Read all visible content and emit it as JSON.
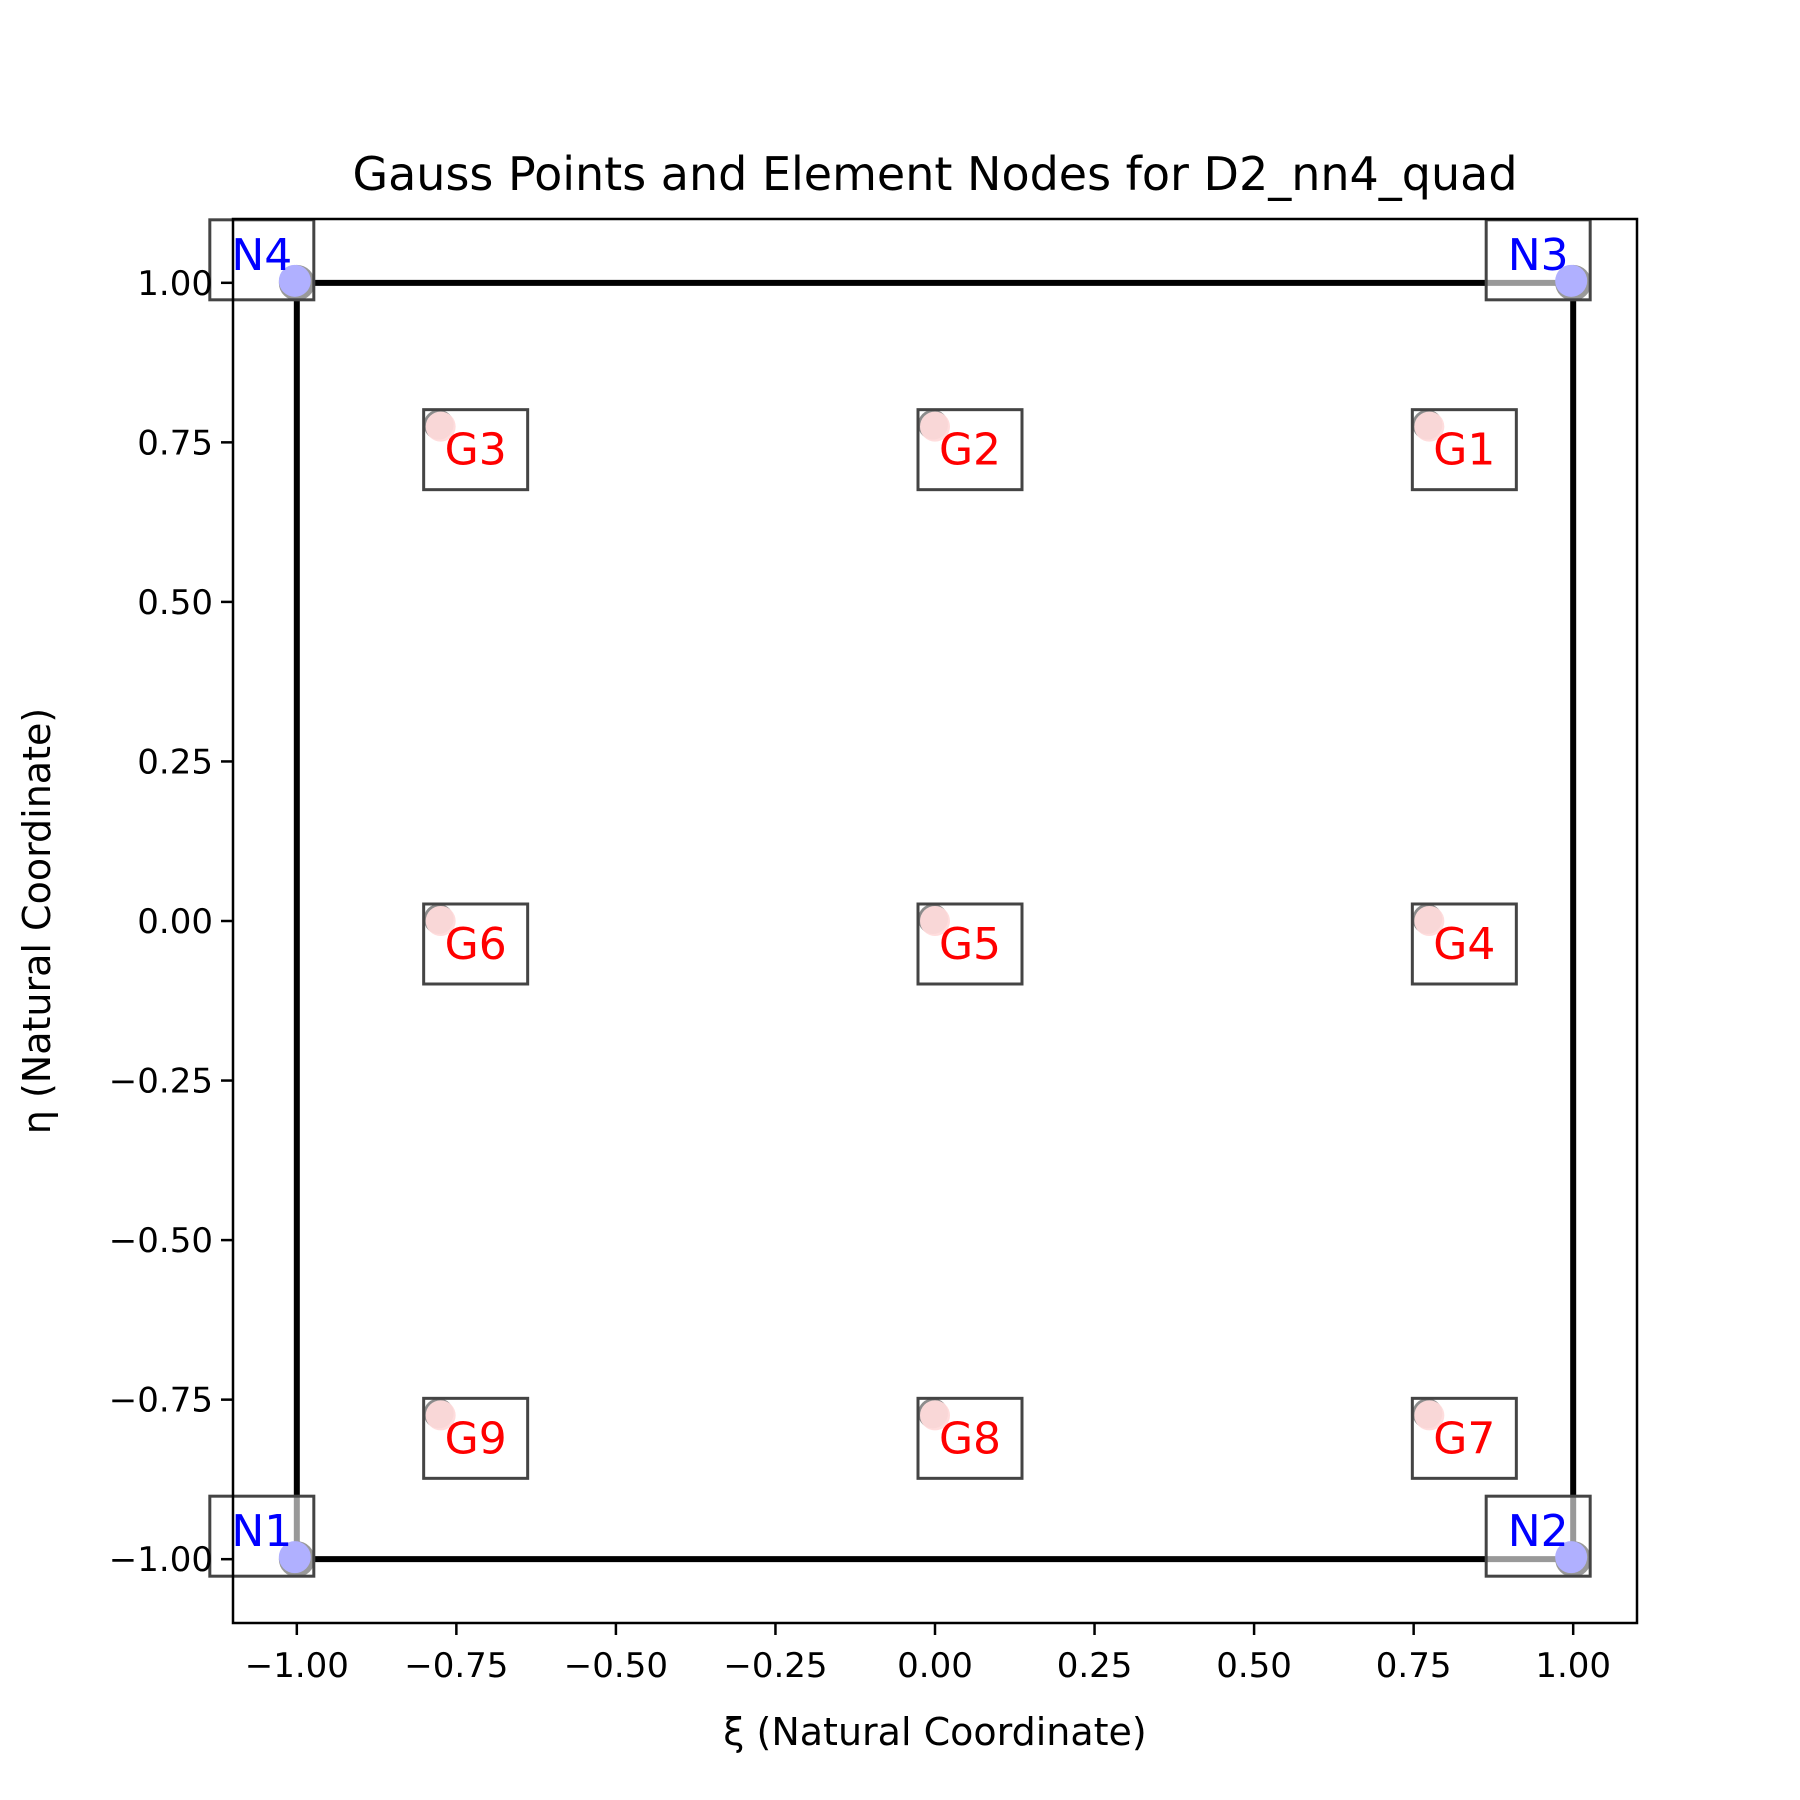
{
  "chart_data": {
    "type": "scatter",
    "title": "Gauss Points and Element Nodes for D2_nn4_quad",
    "xlabel": "ξ (Natural Coordinate)",
    "ylabel": "η (Natural Coordinate)",
    "xlim": [
      -1.1,
      1.1
    ],
    "ylim": [
      -1.1,
      1.1
    ],
    "grid": false,
    "xticks": [
      -1.0,
      -0.75,
      -0.5,
      -0.25,
      0.0,
      0.25,
      0.5,
      0.75,
      1.0
    ],
    "xtick_labels": [
      "−1.00",
      "−0.75",
      "−0.50",
      "−0.25",
      "0.00",
      "0.25",
      "0.50",
      "0.75",
      "1.00"
    ],
    "yticks": [
      -1.0,
      -0.75,
      -0.5,
      -0.25,
      0.0,
      0.25,
      0.5,
      0.75,
      1.0
    ],
    "ytick_labels": [
      "−1.00",
      "−0.75",
      "−0.50",
      "−0.25",
      "0.00",
      "0.25",
      "0.50",
      "0.75",
      "1.00"
    ],
    "element_edges": [
      [
        -1,
        -1
      ],
      [
        1,
        -1
      ],
      [
        1,
        1
      ],
      [
        -1,
        1
      ]
    ],
    "nodes": [
      {
        "label": "N1",
        "x": -1.0,
        "y": -1.0
      },
      {
        "label": "N2",
        "x": 1.0,
        "y": -1.0
      },
      {
        "label": "N3",
        "x": 1.0,
        "y": 1.0
      },
      {
        "label": "N4",
        "x": -1.0,
        "y": 1.0
      }
    ],
    "gauss_points": [
      {
        "label": "G1",
        "x": 0.7746,
        "y": 0.7746
      },
      {
        "label": "G2",
        "x": 0.0,
        "y": 0.7746
      },
      {
        "label": "G3",
        "x": -0.7746,
        "y": 0.7746
      },
      {
        "label": "G4",
        "x": 0.7746,
        "y": 0.0
      },
      {
        "label": "G5",
        "x": 0.0,
        "y": 0.0
      },
      {
        "label": "G6",
        "x": -0.7746,
        "y": 0.0
      },
      {
        "label": "G7",
        "x": 0.7746,
        "y": -0.7746
      },
      {
        "label": "G8",
        "x": 0.0,
        "y": -0.7746
      },
      {
        "label": "G9",
        "x": -0.7746,
        "y": -0.7746
      }
    ],
    "colors": {
      "edge": "#000000",
      "node_fill": "#b0b0ff",
      "node_text": "#0000ff",
      "gauss_fill": "#ffb0b0",
      "gauss_text": "#ff0000",
      "label_box": "#444444"
    }
  }
}
